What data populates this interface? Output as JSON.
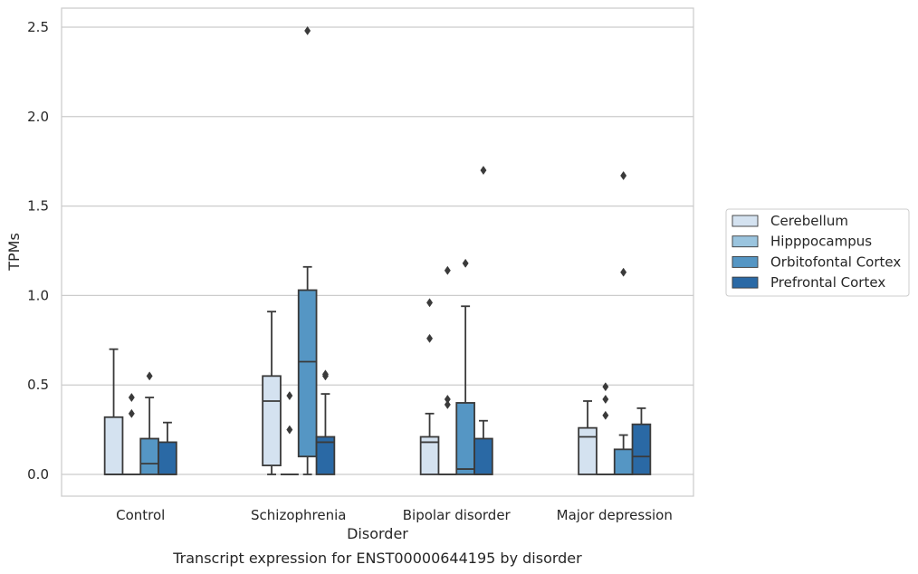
{
  "chart_data": {
    "type": "box",
    "caption": "Transcript expression for ENST00000644195 by disorder",
    "xlabel": "Disorder",
    "ylabel": "TPMs",
    "ylim": [
      -0.12,
      2.62
    ],
    "yticks": [
      0.0,
      0.5,
      1.0,
      1.5,
      2.0,
      2.5
    ],
    "ytick_labels": [
      "0.0",
      "0.5",
      "1.0",
      "1.5",
      "2.0",
      "2.5"
    ],
    "grid": "horizontal",
    "legend_position": "right",
    "categories": [
      "Control",
      "Schizophrenia",
      "Bipolar disorder",
      "Major depression"
    ],
    "series": [
      {
        "name": "Cerebellum",
        "color": "#d4e2f0",
        "boxes": [
          {
            "whislo": 0.0,
            "q1": 0.0,
            "med": 0.0,
            "q3": 0.32,
            "whishi": 0.7,
            "fliers": []
          },
          {
            "whislo": 0.0,
            "q1": 0.05,
            "med": 0.41,
            "q3": 0.55,
            "whishi": 0.91,
            "fliers": []
          },
          {
            "whislo": 0.0,
            "q1": 0.0,
            "med": 0.18,
            "q3": 0.21,
            "whishi": 0.34,
            "fliers": [
              0.76,
              0.96
            ]
          },
          {
            "whislo": 0.0,
            "q1": 0.0,
            "med": 0.21,
            "q3": 0.26,
            "whishi": 0.41,
            "fliers": []
          }
        ]
      },
      {
        "name": "Hipppocampus",
        "color": "#9ac4de",
        "boxes": [
          {
            "whislo": 0.0,
            "q1": 0.0,
            "med": 0.0,
            "q3": 0.0,
            "whishi": 0.0,
            "fliers": [
              0.34,
              0.43
            ]
          },
          {
            "whislo": 0.0,
            "q1": 0.0,
            "med": 0.0,
            "q3": 0.0,
            "whishi": 0.0,
            "fliers": [
              0.25,
              0.44
            ]
          },
          {
            "whislo": 0.0,
            "q1": 0.0,
            "med": 0.0,
            "q3": 0.0,
            "whishi": 0.0,
            "fliers": [
              0.39,
              0.42,
              1.14
            ]
          },
          {
            "whislo": 0.0,
            "q1": 0.0,
            "med": 0.0,
            "q3": 0.0,
            "whishi": 0.0,
            "fliers": [
              0.33,
              0.42,
              0.49
            ]
          }
        ]
      },
      {
        "name": "Orbitofontal Cortex",
        "color": "#5596c4",
        "boxes": [
          {
            "whislo": 0.0,
            "q1": 0.0,
            "med": 0.06,
            "q3": 0.2,
            "whishi": 0.43,
            "fliers": [
              0.55
            ]
          },
          {
            "whislo": 0.0,
            "q1": 0.1,
            "med": 0.63,
            "q3": 1.03,
            "whishi": 1.16,
            "fliers": [
              2.48
            ]
          },
          {
            "whislo": 0.0,
            "q1": 0.0,
            "med": 0.03,
            "q3": 0.4,
            "whishi": 0.94,
            "fliers": [
              1.18
            ]
          },
          {
            "whislo": 0.0,
            "q1": 0.0,
            "med": 0.0,
            "q3": 0.14,
            "whishi": 0.22,
            "fliers": [
              1.13,
              1.67
            ]
          }
        ]
      },
      {
        "name": "Prefrontal Cortex",
        "color": "#2a69a5",
        "boxes": [
          {
            "whislo": 0.0,
            "q1": 0.0,
            "med": 0.0,
            "q3": 0.18,
            "whishi": 0.29,
            "fliers": []
          },
          {
            "whislo": 0.0,
            "q1": 0.0,
            "med": 0.18,
            "q3": 0.21,
            "whishi": 0.45,
            "fliers": [
              0.55,
              0.56
            ]
          },
          {
            "whislo": 0.0,
            "q1": 0.0,
            "med": 0.0,
            "q3": 0.2,
            "whishi": 0.3,
            "fliers": [
              1.7
            ]
          },
          {
            "whislo": 0.0,
            "q1": 0.0,
            "med": 0.1,
            "q3": 0.28,
            "whishi": 0.37,
            "fliers": []
          }
        ]
      }
    ]
  }
}
